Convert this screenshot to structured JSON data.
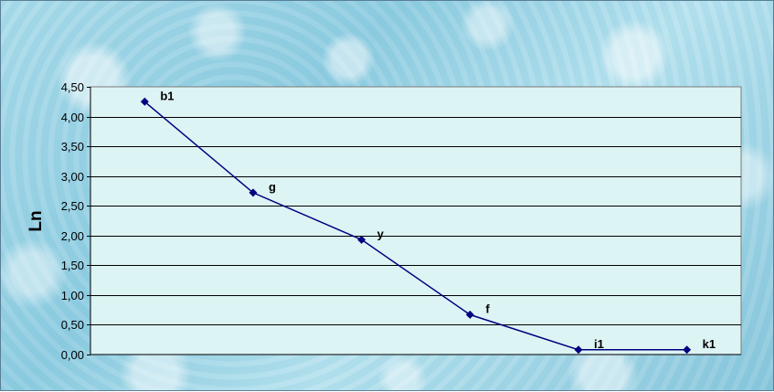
{
  "chart_data": {
    "type": "line",
    "title": "",
    "xlabel": "",
    "ylabel": "Ln",
    "ylim": [
      0,
      4.5
    ],
    "ytick_step": 0.5,
    "ytick_labels": [
      "0,00",
      "0,50",
      "1,00",
      "1,50",
      "2,00",
      "2,50",
      "3,00",
      "3,50",
      "4,00",
      "4,50"
    ],
    "grid": true,
    "legend": "none",
    "colors": {
      "line": "#000080",
      "marker": "#000080",
      "plot_bg": "#dcf4f3",
      "grid": "#000000"
    },
    "series": [
      {
        "points": [
          {
            "label": "b1",
            "y": 4.25
          },
          {
            "label": "g",
            "y": 2.72
          },
          {
            "label": "y",
            "y": 1.93
          },
          {
            "label": "f",
            "y": 0.67
          },
          {
            "label": "i1",
            "y": 0.08
          },
          {
            "label": "k1",
            "y": 0.08
          }
        ]
      }
    ]
  }
}
